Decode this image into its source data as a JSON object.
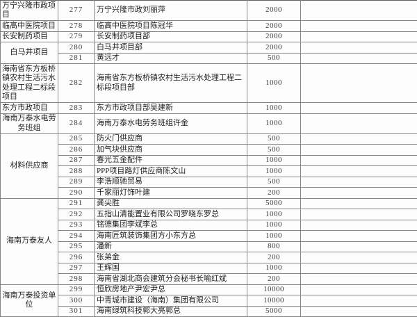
{
  "colors": {
    "grid": "#858585",
    "text": "#1f1f1f",
    "numbers": "#3a3a3a",
    "background": "#ffffff"
  },
  "table": {
    "groups": [
      {
        "category": "万宁兴隆市政项目",
        "centered": false,
        "rows": [
          {
            "no": "277",
            "desc": "万宁兴隆市政刘丽萍",
            "amount": "2000"
          }
        ]
      },
      {
        "category": "临高中医院项目",
        "centered": false,
        "rows": [
          {
            "no": "278",
            "desc": "临高中医院项目陈冠华",
            "amount": "2000"
          }
        ]
      },
      {
        "category": "长安制药项目",
        "centered": false,
        "rows": [
          {
            "no": "279",
            "desc": "长安制药项目部",
            "amount": "2000"
          }
        ]
      },
      {
        "category": "白马井项目",
        "centered": true,
        "rows": [
          {
            "no": "280",
            "desc": "白马井项目部",
            "amount": "2000"
          },
          {
            "no": "281",
            "desc": "黄远才",
            "amount": "500"
          }
        ]
      },
      {
        "category": "海南省东方板桥镇农村生活污水处理工程二标段项目",
        "centered": false,
        "rows": [
          {
            "no": "282",
            "desc": "海南省东方板桥镇农村生活污水处理工程二标段项目部",
            "amount": "1000"
          }
        ]
      },
      {
        "category": "东方市政项目",
        "centered": false,
        "rows": [
          {
            "no": "283",
            "desc": "东方市政项目部吴建新",
            "amount": "1000"
          }
        ]
      },
      {
        "category": "海南万泰水电劳务班组",
        "centered": true,
        "rows": [
          {
            "no": "284",
            "desc": "海南万泰水电劳务班组许金",
            "amount": "1000"
          }
        ]
      },
      {
        "category": "材料供应商",
        "centered": true,
        "rows": [
          {
            "no": "285",
            "desc": "防火门供应商",
            "amount": "500"
          },
          {
            "no": "286",
            "desc": "加气块供应商",
            "amount": "500"
          },
          {
            "no": "287",
            "desc": "春光五金配件",
            "amount": "1000"
          },
          {
            "no": "288",
            "desc": "PPP项目路灯供应商陈文山",
            "amount": "1000"
          },
          {
            "no": "289",
            "desc": "李浩顺驰贸易",
            "amount": "500"
          },
          {
            "no": "290",
            "desc": "千家丽灯饰叶建",
            "amount": "200"
          }
        ]
      },
      {
        "category": "海南万泰友人",
        "centered": true,
        "rows": [
          {
            "no": "291",
            "desc": "龚尖胜",
            "amount": "5000"
          },
          {
            "no": "292",
            "desc": "五指山清能置业有限公司罗晓东罗总",
            "amount": "1000"
          },
          {
            "no": "293",
            "desc": "铭德集团李斌李总",
            "amount": "1000"
          },
          {
            "no": "294",
            "desc": "海南匠筑装饰集团方小东方总",
            "amount": "1000"
          },
          {
            "no": "295",
            "desc": "潘新",
            "amount": "800"
          },
          {
            "no": "296",
            "desc": "张弟金",
            "amount": "200"
          },
          {
            "no": "297",
            "desc": "王辉国",
            "amount": "1000"
          },
          {
            "no": "298",
            "desc": "海南省湖北商会建筑分会秘书长喻红斌",
            "amount": "200"
          }
        ]
      },
      {
        "category": "海南万泰投资单位",
        "centered": true,
        "rows": [
          {
            "no": "299",
            "desc": "恒欣房地产尹宏尹总",
            "amount": "10000"
          },
          {
            "no": "300",
            "desc": "中青城市建设（海南）集团有限公司",
            "amount": "10000"
          },
          {
            "no": "301",
            "desc": "海南绿筑科技郭大亮郭总",
            "amount": "5000"
          }
        ]
      }
    ]
  }
}
